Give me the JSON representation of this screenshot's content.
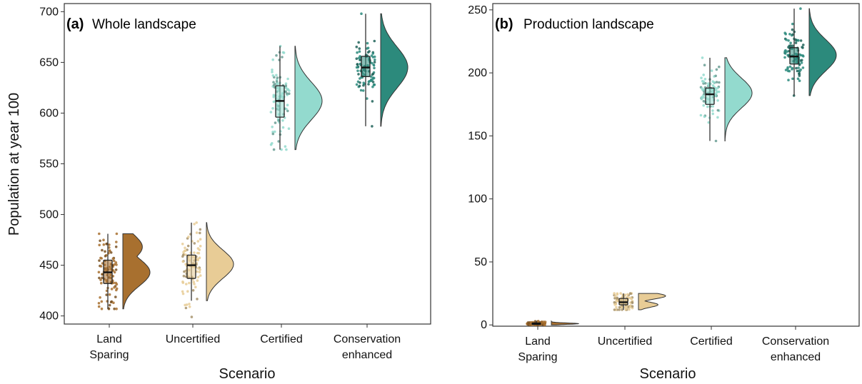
{
  "chart_data": [
    {
      "type": "raincloud",
      "panel_tag": "(a)",
      "title": "Whole landscape",
      "xlabel": "Scenario",
      "ylabel": "Population at year 100",
      "ylim": [
        392,
        708
      ],
      "yticks": [
        400,
        450,
        500,
        550,
        600,
        650,
        700
      ],
      "categories": [
        {
          "line1": "Land",
          "line2": "Sparing"
        },
        {
          "line1": "Uncertified",
          "line2": ""
        },
        {
          "line1": "Certified",
          "line2": ""
        },
        {
          "line1": "Conservation",
          "line2": "enhanced"
        }
      ],
      "series": [
        {
          "color": "#a8702f",
          "min": 407,
          "q1": 432,
          "median": 443,
          "q3": 455,
          "max": 481,
          "mode": 443,
          "shoulder": 468,
          "point_min": 407,
          "point_max": 481
        },
        {
          "color": "#e8cc96",
          "min": 415,
          "q1": 437,
          "median": 450,
          "q3": 460,
          "max": 492,
          "mode": 451,
          "shoulder": 0,
          "point_min": 399,
          "point_max": 492
        },
        {
          "color": "#93dace",
          "min": 564,
          "q1": 596,
          "median": 612,
          "q3": 627,
          "max": 666,
          "mode": 612,
          "shoulder": 0,
          "point_min": 564,
          "point_max": 666
        },
        {
          "color": "#2c8a7c",
          "min": 587,
          "q1": 636,
          "median": 645,
          "q3": 656,
          "max": 698,
          "mode": 645,
          "shoulder": 0,
          "point_min": 587,
          "point_max": 698
        }
      ]
    },
    {
      "type": "raincloud",
      "panel_tag": "(b)",
      "title": "Production landscape",
      "xlabel": "Scenario",
      "ylabel": "",
      "ylim": [
        -1,
        255
      ],
      "yticks": [
        0,
        50,
        100,
        150,
        200,
        250
      ],
      "categories": [
        {
          "line1": "Land",
          "line2": "Sparing"
        },
        {
          "line1": "Uncertified",
          "line2": ""
        },
        {
          "line1": "Certified",
          "line2": ""
        },
        {
          "line1": "Conservation",
          "line2": "enhanced"
        }
      ],
      "series": [
        {
          "color": "#a8702f",
          "min": 0,
          "q1": 0.5,
          "median": 1,
          "q3": 1.5,
          "max": 3,
          "mode": 1,
          "shoulder": 0,
          "point_min": 0,
          "point_max": 3
        },
        {
          "color": "#e8cc96",
          "min": 12,
          "q1": 16,
          "median": 18,
          "q3": 21,
          "max": 25,
          "mode": 23,
          "shoulder": 16,
          "point_min": 12,
          "point_max": 25
        },
        {
          "color": "#93dace",
          "min": 146,
          "q1": 175,
          "median": 183,
          "q3": 188,
          "max": 212,
          "mode": 184,
          "shoulder": 0,
          "point_min": 146,
          "point_max": 212
        },
        {
          "color": "#2c8a7c",
          "min": 182,
          "q1": 207,
          "median": 213,
          "q3": 220,
          "max": 251,
          "mode": 214,
          "shoulder": 0,
          "point_min": 182,
          "point_max": 251
        }
      ]
    }
  ]
}
